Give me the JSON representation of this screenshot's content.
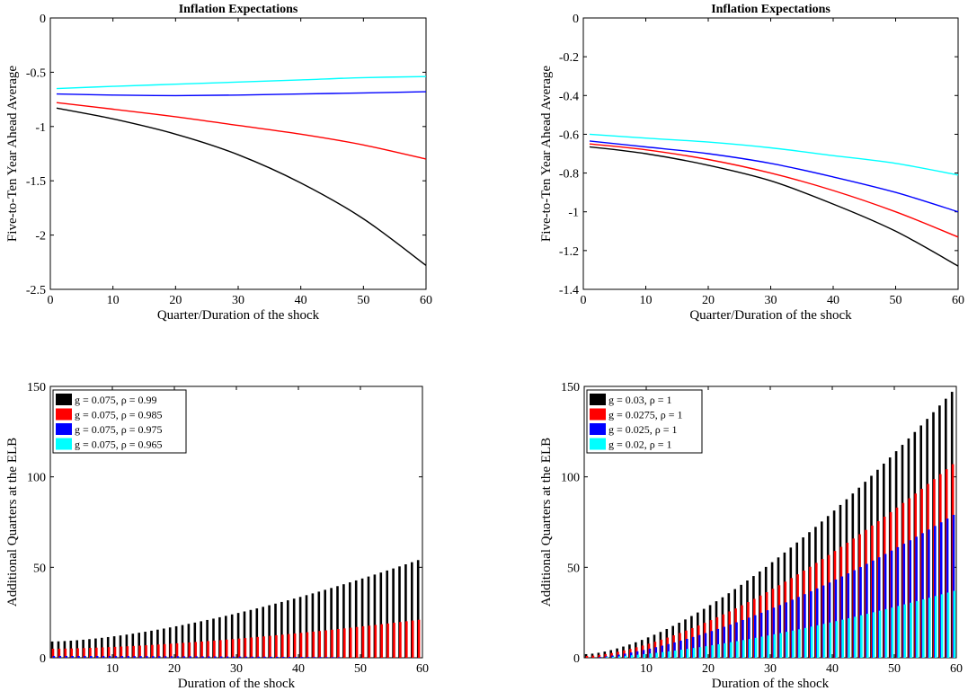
{
  "chart_data": [
    {
      "type": "line",
      "title": "Inflation Expectations",
      "xlabel": "Quarter/Duration of the shock",
      "ylabel": "Five-to-Ten Year Ahead Average",
      "xlim": [
        0,
        60
      ],
      "ylim": [
        -2.5,
        0
      ],
      "xticks": [
        0,
        10,
        20,
        30,
        40,
        50,
        60
      ],
      "yticks": [
        0,
        -0.5,
        -1,
        -1.5,
        -2,
        -2.5
      ],
      "ytick_labels": [
        "0",
        "-0.5",
        "-1",
        "-1.5",
        "-2",
        "-2.5"
      ],
      "reference_line": 0,
      "series": [
        {
          "color": "#000000",
          "x": [
            1,
            10,
            20,
            30,
            40,
            50,
            60
          ],
          "y": [
            -0.83,
            -0.93,
            -1.07,
            -1.26,
            -1.52,
            -1.85,
            -2.28
          ]
        },
        {
          "color": "#ff0000",
          "x": [
            1,
            10,
            20,
            30,
            40,
            50,
            60
          ],
          "y": [
            -0.78,
            -0.84,
            -0.91,
            -0.99,
            -1.07,
            -1.17,
            -1.3
          ]
        },
        {
          "color": "#0000ff",
          "x": [
            1,
            10,
            20,
            30,
            40,
            50,
            60
          ],
          "y": [
            -0.7,
            -0.71,
            -0.715,
            -0.71,
            -0.7,
            -0.69,
            -0.68
          ]
        },
        {
          "color": "#00ffff",
          "x": [
            1,
            10,
            20,
            30,
            40,
            50,
            60
          ],
          "y": [
            -0.65,
            -0.63,
            -0.61,
            -0.59,
            -0.57,
            -0.55,
            -0.54
          ]
        }
      ]
    },
    {
      "type": "line",
      "title": "Inflation Expectations",
      "xlabel": "Quarter/Duration of the shock",
      "ylabel": "Five-to-Ten Year Ahead Average",
      "xlim": [
        0,
        60
      ],
      "ylim": [
        -1.4,
        0
      ],
      "xticks": [
        0,
        10,
        20,
        30,
        40,
        50,
        60
      ],
      "yticks": [
        0,
        -0.2,
        -0.4,
        -0.6,
        -0.8,
        -1,
        -1.2,
        -1.4
      ],
      "ytick_labels": [
        "0",
        "-0.2",
        "-0.4",
        "-0.6",
        "-0.8",
        "-1",
        "-1.2",
        "-1.4"
      ],
      "reference_line": 0,
      "series": [
        {
          "color": "#000000",
          "x": [
            1,
            10,
            20,
            30,
            40,
            50,
            60
          ],
          "y": [
            -0.665,
            -0.7,
            -0.76,
            -0.84,
            -0.96,
            -1.1,
            -1.28
          ]
        },
        {
          "color": "#ff0000",
          "x": [
            1,
            10,
            20,
            30,
            40,
            50,
            60
          ],
          "y": [
            -0.65,
            -0.68,
            -0.73,
            -0.8,
            -0.89,
            -1.0,
            -1.13
          ]
        },
        {
          "color": "#0000ff",
          "x": [
            1,
            10,
            20,
            30,
            40,
            50,
            60
          ],
          "y": [
            -0.635,
            -0.665,
            -0.7,
            -0.75,
            -0.82,
            -0.9,
            -1.0
          ]
        },
        {
          "color": "#00ffff",
          "x": [
            1,
            10,
            20,
            30,
            40,
            50,
            60
          ],
          "y": [
            -0.6,
            -0.62,
            -0.64,
            -0.67,
            -0.71,
            -0.75,
            -0.81
          ]
        }
      ]
    },
    {
      "type": "bar",
      "title": "",
      "xlabel": "Duration of the shock",
      "ylabel": "Additional Quarters at the ELB",
      "xlim": [
        0,
        60
      ],
      "ylim": [
        0,
        150
      ],
      "xticks": [
        10,
        20,
        30,
        40,
        50,
        60
      ],
      "yticks": [
        0,
        50,
        100,
        150
      ],
      "ytick_labels": [
        "0",
        "50",
        "100",
        "150"
      ],
      "legend_position": "top-left",
      "series": [
        {
          "name": "g = 0.075, ρ = 0.99",
          "color": "#000000",
          "start": 9,
          "end": 54
        },
        {
          "name": "g = 0.075, ρ = 0.985",
          "color": "#ff0000",
          "start": 5,
          "end": 21
        },
        {
          "name": "g = 0.075, ρ = 0.975",
          "color": "#0000ff",
          "start": 1,
          "end": 0
        },
        {
          "name": "g = 0.075, ρ = 0.965",
          "color": "#00ffff",
          "start": 0,
          "end": 0
        }
      ]
    },
    {
      "type": "bar",
      "title": "",
      "xlabel": "Duration of the shock",
      "ylabel": "Additional Quarters at the ELB",
      "xlim": [
        0,
        60
      ],
      "ylim": [
        0,
        150
      ],
      "xticks": [
        10,
        20,
        30,
        40,
        50,
        60
      ],
      "yticks": [
        0,
        50,
        100,
        150
      ],
      "ytick_labels": [
        "0",
        "50",
        "100",
        "150"
      ],
      "legend_position": "top-left",
      "series": [
        {
          "name": "g = 0.03,     ρ = 1",
          "color": "#000000",
          "start": 2,
          "end": 147
        },
        {
          "name": "g = 0.0275, ρ = 1",
          "color": "#ff0000",
          "start": 1,
          "end": 107
        },
        {
          "name": "g = 0.025,   ρ = 1",
          "color": "#0000ff",
          "start": 0,
          "end": 79
        },
        {
          "name": "g = 0.02,     ρ = 1",
          "color": "#00ffff",
          "start": 0,
          "end": 37
        }
      ]
    }
  ]
}
